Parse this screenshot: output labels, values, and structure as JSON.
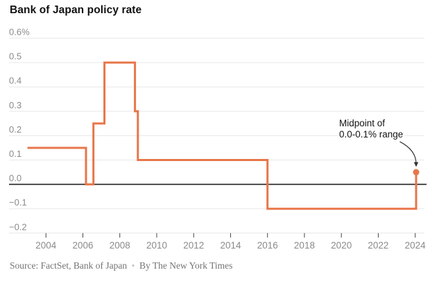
{
  "chart_data": {
    "type": "line",
    "title": "Bank of Japan policy rate",
    "xlabel": "",
    "ylabel": "",
    "grid": true,
    "x_domain": [
      2002.0,
      2024.5
    ],
    "x_ticks": [
      2004,
      2006,
      2008,
      2010,
      2012,
      2014,
      2016,
      2018,
      2020,
      2022,
      2024
    ],
    "y_ticks": [
      {
        "v": 0.6,
        "label": "0.6%"
      },
      {
        "v": 0.5,
        "label": "0.5"
      },
      {
        "v": 0.4,
        "label": "0.4"
      },
      {
        "v": 0.3,
        "label": "0.3"
      },
      {
        "v": 0.2,
        "label": "0.2"
      },
      {
        "v": 0.1,
        "label": "0.1"
      },
      {
        "v": 0.0,
        "label": "0.0"
      },
      {
        "v": -0.1,
        "label": "−0.1"
      },
      {
        "v": -0.2,
        "label": "−0.2"
      }
    ],
    "series": [
      {
        "name": "Bank of Japan policy rate (%)",
        "step": true,
        "points": [
          [
            2003.0,
            0.15
          ],
          [
            2006.17,
            0.15
          ],
          [
            2006.17,
            0.0
          ],
          [
            2006.57,
            0.0
          ],
          [
            2006.57,
            0.25
          ],
          [
            2007.17,
            0.25
          ],
          [
            2007.17,
            0.5
          ],
          [
            2008.82,
            0.5
          ],
          [
            2008.82,
            0.3
          ],
          [
            2008.98,
            0.3
          ],
          [
            2008.98,
            0.1
          ],
          [
            2016.0,
            0.1
          ],
          [
            2016.0,
            -0.1
          ],
          [
            2024.05,
            -0.1
          ],
          [
            2024.05,
            0.05
          ]
        ]
      }
    ],
    "end_dot": {
      "x": 2024.05,
      "y": 0.05
    },
    "annotation": {
      "line1": "Midpoint of",
      "line2": "0.0-0.1% range"
    },
    "colors": {
      "line": "#e7764a",
      "grid": "#e7e7e7",
      "zero_line": "#1f1f1f",
      "axis_label": "#8a8a8a",
      "tick": "#444444",
      "annotation_text": "#121212",
      "arrow": "#333333"
    }
  },
  "footer": {
    "source": "Source: FactSet, Bank of Japan",
    "separator": "•",
    "byline": "By The New York Times"
  }
}
